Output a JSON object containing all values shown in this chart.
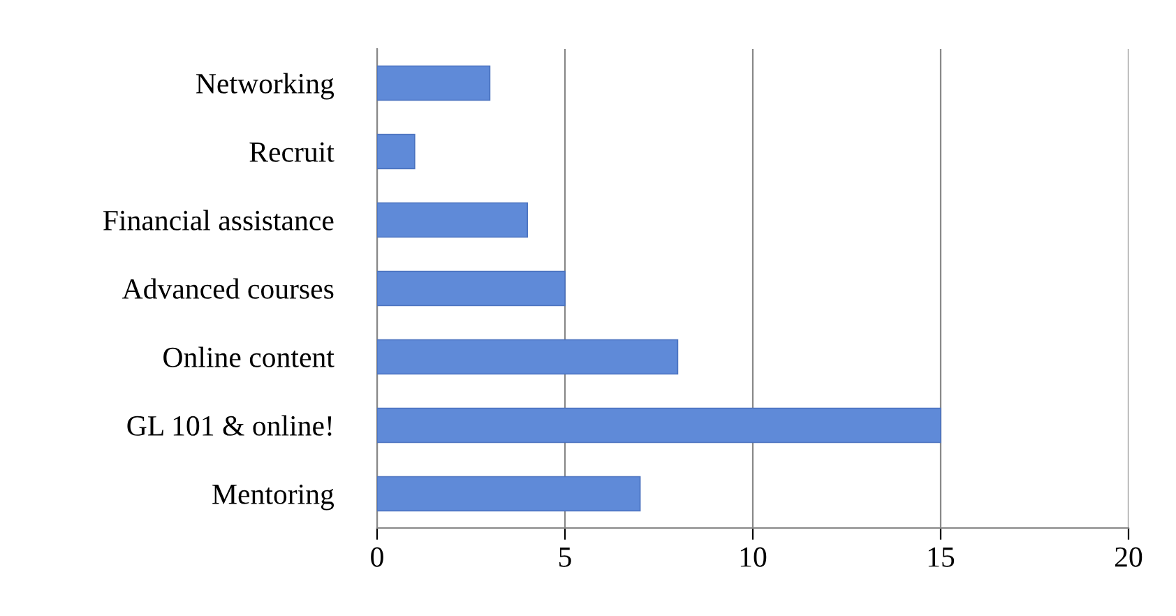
{
  "chart_data": {
    "type": "bar",
    "orientation": "horizontal",
    "categories": [
      "Networking",
      "Recruit",
      "Financial assistance",
      "Advanced courses",
      "Online content",
      "GL 101 & online!",
      "Mentoring"
    ],
    "values": [
      3,
      1,
      4,
      5,
      8,
      15,
      7
    ],
    "color": "#5f8ad8",
    "xlim": [
      0,
      20
    ],
    "xticks": [
      0,
      5,
      10,
      15,
      20
    ],
    "grid": "x"
  }
}
